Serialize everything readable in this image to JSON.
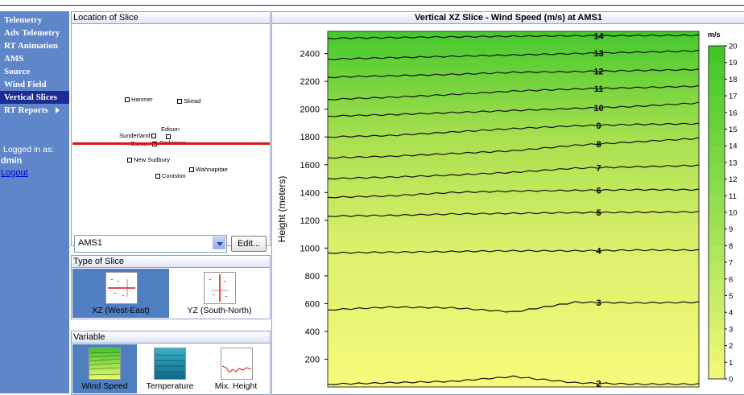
{
  "sidebar": {
    "items": [
      {
        "label": "Telemetry"
      },
      {
        "label": "Adv Telemetry"
      },
      {
        "label": "RT Animation"
      },
      {
        "label": "AMS"
      },
      {
        "label": "Source"
      },
      {
        "label": "Wind Field"
      },
      {
        "label": "Vertical Slices",
        "active": true
      },
      {
        "label": "RT Reports",
        "submenu": true
      }
    ],
    "logged_in_label": "Logged in as:",
    "user": "dmin",
    "logout": "Logout"
  },
  "location": {
    "title": "Location of Slice",
    "towns": [
      "Hanmer",
      "Skead",
      "Edison",
      "Sunderland",
      "Garson",
      "Parkinson",
      "New Sudbury",
      "Wahnapitae",
      "Coniston"
    ],
    "station_value": "AMS1",
    "edit_label": "Edit..."
  },
  "slice_type": {
    "title": "Type of Slice",
    "options": [
      {
        "label": "XZ (West-East)",
        "selected": true
      },
      {
        "label": "YZ (South-North)",
        "selected": false
      }
    ]
  },
  "variable": {
    "title": "Variable",
    "options": [
      {
        "label": "Wind Speed",
        "selected": true
      },
      {
        "label": "Temperature",
        "selected": false
      },
      {
        "label": "Mix. Height",
        "selected": false
      }
    ]
  },
  "plot": {
    "title": "Vertical XZ Slice - Wind Speed (m/s) at AMS1"
  },
  "chart_data": {
    "type": "heatmap",
    "title": "Vertical XZ Slice - Wind Speed (m/s) at AMS1",
    "ylabel": "Height (meters)",
    "xlabel": "",
    "y_ticks": [
      200,
      400,
      600,
      800,
      1000,
      1200,
      1400,
      1600,
      1800,
      2000,
      2200,
      2400
    ],
    "ylim": [
      0,
      2560
    ],
    "grid": false,
    "colorbar": {
      "unit": "m/s",
      "ticks": [
        0,
        1,
        2,
        3,
        4,
        5,
        6,
        7,
        8,
        9,
        10,
        11,
        12,
        13,
        14,
        15,
        16,
        17,
        18,
        19,
        20
      ],
      "range": [
        0,
        20
      ],
      "low_color": "#f4fa78",
      "high_color": "#3dc629"
    },
    "contours": [
      {
        "level": 2,
        "heights": [
          20,
          30,
          40,
          75,
          30,
          20,
          20
        ]
      },
      {
        "level": 3,
        "heights": [
          555,
          575,
          570,
          540,
          610,
          605,
          610
        ]
      },
      {
        "level": 4,
        "heights": [
          965,
          970,
          975,
          980,
          980,
          985,
          985
        ]
      },
      {
        "level": 5,
        "heights": [
          1230,
          1235,
          1245,
          1250,
          1255,
          1258,
          1260
        ]
      },
      {
        "level": 6,
        "heights": [
          1365,
          1375,
          1400,
          1410,
          1415,
          1420,
          1420
        ]
      },
      {
        "level": 7,
        "heights": [
          1500,
          1510,
          1525,
          1545,
          1575,
          1585,
          1595
        ]
      },
      {
        "level": 8,
        "heights": [
          1650,
          1660,
          1680,
          1700,
          1740,
          1765,
          1790
        ]
      },
      {
        "level": 9,
        "heights": [
          1800,
          1810,
          1835,
          1860,
          1880,
          1890,
          1895
        ]
      },
      {
        "level": 10,
        "heights": [
          1950,
          1960,
          1975,
          1990,
          2005,
          2020,
          2045
        ]
      },
      {
        "level": 11,
        "heights": [
          2070,
          2085,
          2105,
          2130,
          2145,
          2155,
          2165
        ]
      },
      {
        "level": 12,
        "heights": [
          2230,
          2240,
          2250,
          2265,
          2270,
          2278,
          2285
        ]
      },
      {
        "level": 13,
        "heights": [
          2360,
          2370,
          2380,
          2390,
          2400,
          2410,
          2420
        ]
      },
      {
        "level": 14,
        "heights": [
          2510,
          2515,
          2520,
          2525,
          2528,
          2530,
          2532
        ]
      }
    ]
  }
}
